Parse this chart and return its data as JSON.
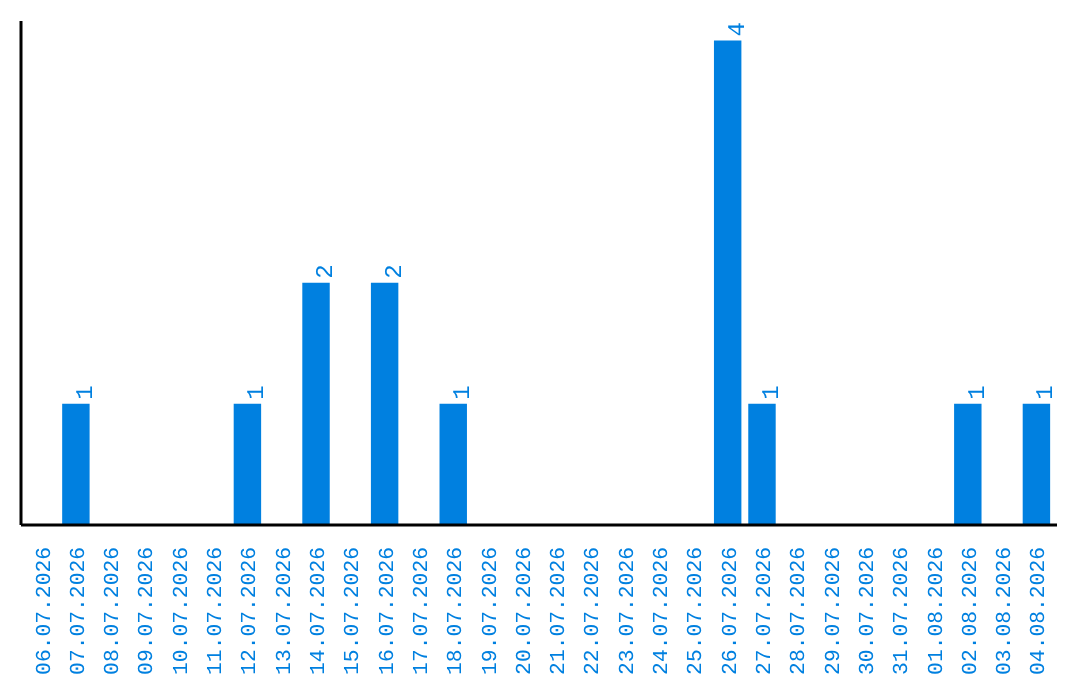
{
  "chart_data": {
    "type": "bar",
    "relative": false,
    "categories": [
      "06.07.2026",
      "07.07.2026",
      "08.07.2026",
      "09.07.2026",
      "10.07.2026",
      "11.07.2026",
      "12.07.2026",
      "13.07.2026",
      "14.07.2026",
      "15.07.2026",
      "16.07.2026",
      "17.07.2026",
      "18.07.2026",
      "19.07.2026",
      "20.07.2026",
      "21.07.2026",
      "22.07.2026",
      "23.07.2026",
      "24.07.2026",
      "25.07.2026",
      "26.07.2026",
      "27.07.2026",
      "28.07.2026",
      "29.07.2026",
      "30.07.2026",
      "31.07.2026",
      "01.08.2026",
      "02.08.2026",
      "03.08.2026",
      "04.08.2026"
    ],
    "values": [
      0,
      1,
      0,
      0,
      0,
      0,
      1,
      0,
      2,
      0,
      2,
      0,
      1,
      0,
      0,
      0,
      0,
      0,
      0,
      0,
      4,
      1,
      0,
      0,
      0,
      0,
      0,
      1,
      0,
      1
    ],
    "value_labels": [
      null,
      "1",
      null,
      null,
      null,
      null,
      "1",
      null,
      "2",
      null,
      "2",
      null,
      "1",
      null,
      null,
      null,
      null,
      null,
      null,
      null,
      "4",
      "1",
      null,
      null,
      null,
      null,
      null,
      "1",
      null,
      "1"
    ],
    "color": "#0080e0",
    "grid": false,
    "tick_labels": "x"
  }
}
